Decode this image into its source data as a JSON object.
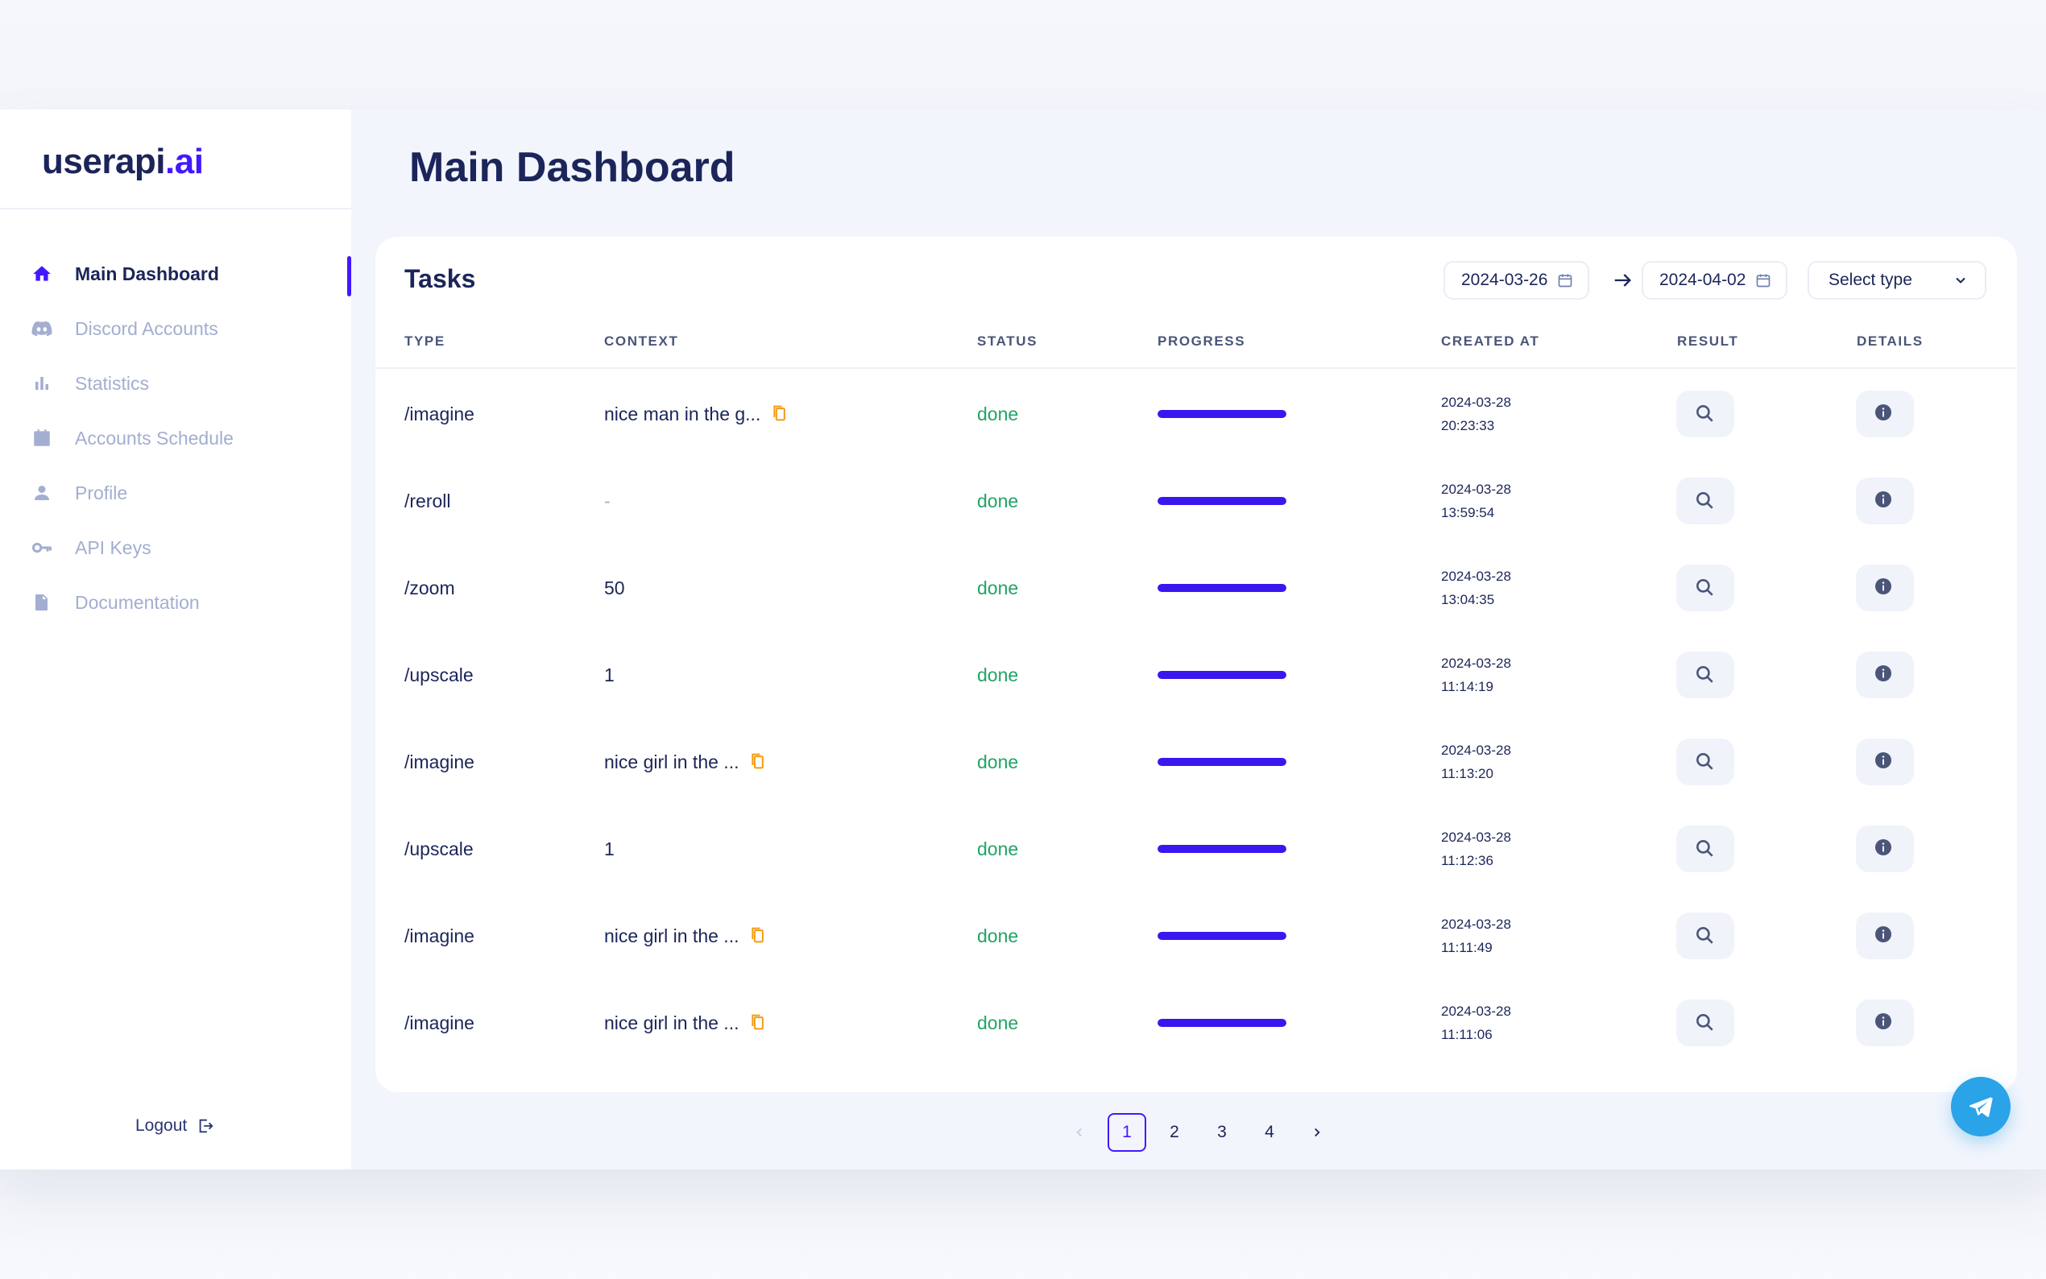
{
  "brand": {
    "name": "userapi",
    "suffix": ".ai",
    "accent_color": "#4318ff"
  },
  "sidebar": {
    "items": [
      {
        "label": "Main Dashboard",
        "icon": "home-icon",
        "active": true
      },
      {
        "label": "Discord Accounts",
        "icon": "discord-icon",
        "active": false
      },
      {
        "label": "Statistics",
        "icon": "bar-chart-icon",
        "active": false
      },
      {
        "label": "Accounts Schedule",
        "icon": "calendar-icon",
        "active": false
      },
      {
        "label": "Profile",
        "icon": "user-icon",
        "active": false
      },
      {
        "label": "API Keys",
        "icon": "key-icon",
        "active": false
      },
      {
        "label": "Documentation",
        "icon": "document-icon",
        "active": false
      }
    ],
    "logout_label": "Logout"
  },
  "header": {
    "title": "Main Dashboard"
  },
  "tasks": {
    "title": "Tasks",
    "filters": {
      "date_from": "2024-03-26",
      "date_to": "2024-04-02",
      "type_placeholder": "Select type"
    },
    "columns": [
      "TYPE",
      "CONTEXT",
      "STATUS",
      "PROGRESS",
      "CREATED AT",
      "RESULT",
      "DETAILS"
    ],
    "rows": [
      {
        "type": "/imagine",
        "context": "nice man in the g...",
        "copyable": true,
        "status": "done",
        "progress": 1.0,
        "date": "2024-03-28",
        "time": "20:23:33"
      },
      {
        "type": "/reroll",
        "context": "-",
        "copyable": false,
        "status": "done",
        "progress": 1.0,
        "date": "2024-03-28",
        "time": "13:59:54"
      },
      {
        "type": "/zoom",
        "context": "50",
        "copyable": false,
        "status": "done",
        "progress": 1.0,
        "date": "2024-03-28",
        "time": "13:04:35"
      },
      {
        "type": "/upscale",
        "context": "1",
        "copyable": false,
        "status": "done",
        "progress": 1.0,
        "date": "2024-03-28",
        "time": "11:14:19"
      },
      {
        "type": "/imagine",
        "context": "nice girl in the ...",
        "copyable": true,
        "status": "done",
        "progress": 1.0,
        "date": "2024-03-28",
        "time": "11:13:20"
      },
      {
        "type": "/upscale",
        "context": "1",
        "copyable": false,
        "status": "done",
        "progress": 1.0,
        "date": "2024-03-28",
        "time": "11:12:36"
      },
      {
        "type": "/imagine",
        "context": "nice girl in the ...",
        "copyable": true,
        "status": "done",
        "progress": 1.0,
        "date": "2024-03-28",
        "time": "11:11:49"
      },
      {
        "type": "/imagine",
        "context": "nice girl in the ...",
        "copyable": true,
        "status": "done",
        "progress": 1.0,
        "date": "2024-03-28",
        "time": "11:11:06"
      }
    ]
  },
  "pagination": {
    "pages": [
      "1",
      "2",
      "3",
      "4"
    ],
    "current": "1"
  },
  "colors": {
    "status_done": "#20a464",
    "progress": "#3a17ef",
    "copy_icon": "#f39c12",
    "fab": "#2aa3e8"
  }
}
